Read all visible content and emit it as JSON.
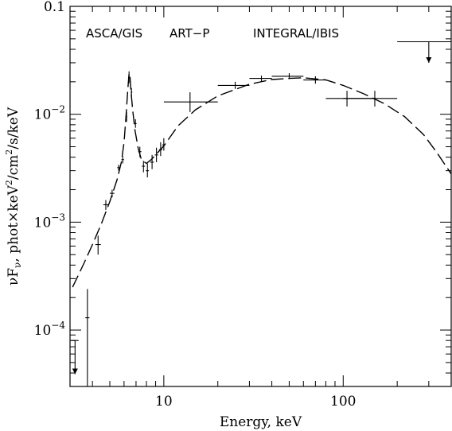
{
  "chart_data": {
    "type": "scatter",
    "xlabel": "Energy, keV",
    "ylabel_parts": [
      "νF",
      "ν",
      ", phot×keV",
      "2",
      "/cm",
      "2",
      "/s/keV"
    ],
    "xscale": "log",
    "yscale": "log",
    "xlim": [
      3.0,
      400.0
    ],
    "ylim": [
      3e-05,
      0.1
    ],
    "x_ticks": [
      {
        "value": 10,
        "label": "10"
      },
      {
        "value": 100,
        "label": "100"
      }
    ],
    "y_ticks": [
      {
        "value": 0.1,
        "label": "0.1",
        "exp": ""
      },
      {
        "value": 0.01,
        "label": "10",
        "exp": "−2"
      },
      {
        "value": 0.001,
        "label": "10",
        "exp": "−3"
      },
      {
        "value": 0.0001,
        "label": "10",
        "exp": "−4"
      }
    ],
    "annotations": [
      "ASCA/GIS",
      "ART−P",
      "INTEGRAL/IBIS"
    ],
    "series": [
      {
        "style": "crosses",
        "points": [
          {
            "x": 3.75,
            "y": 0.00013,
            "xerr": [
              3.65,
              3.85
            ],
            "yerr": [
              3e-05,
              0.00024
            ]
          },
          {
            "x": 4.3,
            "y": 0.00062,
            "xerr": [
              4.15,
              4.45
            ],
            "yerr": [
              0.0005,
              0.00075
            ]
          },
          {
            "x": 4.75,
            "y": 0.00145,
            "xerr": [
              4.6,
              4.9
            ],
            "yerr": [
              0.0013,
              0.0016
            ]
          },
          {
            "x": 5.15,
            "y": 0.00185,
            "xerr": [
              5.0,
              5.3
            ],
            "yerr": [
              0.0017,
              0.002
            ]
          },
          {
            "x": 5.6,
            "y": 0.0032,
            "xerr": [
              5.5,
              5.7
            ],
            "yerr": [
              0.003,
              0.0034
            ]
          },
          {
            "x": 5.9,
            "y": 0.0038,
            "xerr": [
              5.8,
              6.0
            ],
            "yerr": [
              0.0035,
              0.0041
            ]
          },
          {
            "x": 6.2,
            "y": 0.0095,
            "xerr": [
              6.15,
              6.25
            ],
            "yerr": [
              0.0085,
              0.0105
            ]
          },
          {
            "x": 6.4,
            "y": 0.022,
            "xerr": [
              6.33,
              6.47
            ],
            "yerr": [
              0.0195,
              0.025
            ]
          },
          {
            "x": 6.6,
            "y": 0.016,
            "xerr": [
              6.53,
              6.67
            ],
            "yerr": [
              0.0145,
              0.0175
            ]
          },
          {
            "x": 6.95,
            "y": 0.0082,
            "xerr": [
              6.85,
              7.05
            ],
            "yerr": [
              0.0075,
              0.009
            ]
          },
          {
            "x": 7.35,
            "y": 0.0045,
            "xerr": [
              7.2,
              7.5
            ],
            "yerr": [
              0.004,
              0.005
            ]
          },
          {
            "x": 7.7,
            "y": 0.0033,
            "xerr": [
              7.55,
              7.85
            ],
            "yerr": [
              0.0029,
              0.0037
            ]
          },
          {
            "x": 8.1,
            "y": 0.003,
            "xerr": [
              7.95,
              8.25
            ],
            "yerr": [
              0.0026,
              0.0035
            ]
          },
          {
            "x": 8.6,
            "y": 0.0036,
            "xerr": [
              8.4,
              8.8
            ],
            "yerr": [
              0.0031,
              0.0042
            ]
          },
          {
            "x": 9.1,
            "y": 0.0042,
            "xerr": [
              8.9,
              9.3
            ],
            "yerr": [
              0.0036,
              0.0049
            ]
          },
          {
            "x": 9.6,
            "y": 0.0047,
            "xerr": [
              9.4,
              9.8
            ],
            "yerr": [
              0.0041,
              0.0055
            ]
          },
          {
            "x": 10.0,
            "y": 0.0052,
            "xerr": [
              9.8,
              10.2
            ],
            "yerr": [
              0.0046,
              0.006
            ]
          },
          {
            "x": 14.0,
            "y": 0.013,
            "xerr": [
              10.0,
              20.0
            ],
            "yerr": [
              0.0105,
              0.016
            ]
          },
          {
            "x": 25.0,
            "y": 0.0185,
            "xerr": [
              20.0,
              30.0
            ],
            "yerr": [
              0.0172,
              0.02
            ]
          },
          {
            "x": 35.0,
            "y": 0.0215,
            "xerr": [
              30.0,
              40.0
            ],
            "yerr": [
              0.0202,
              0.0228
            ]
          },
          {
            "x": 50.0,
            "y": 0.0225,
            "xerr": [
              40.0,
              60.0
            ],
            "yerr": [
              0.0212,
              0.024
            ]
          },
          {
            "x": 70.0,
            "y": 0.0208,
            "xerr": [
              60.0,
              80.0
            ],
            "yerr": [
              0.0192,
              0.0225
            ]
          },
          {
            "x": 105.0,
            "y": 0.014,
            "xerr": [
              80.0,
              150.0
            ],
            "yerr": [
              0.0118,
              0.0165
            ]
          },
          {
            "x": 150.0,
            "y": 0.014,
            "xerr": [
              100.0,
              200.0
            ],
            "yerr": [
              0.0118,
              0.0165
            ]
          }
        ]
      },
      {
        "style": "upper-limits",
        "points": [
          {
            "x": 3.2,
            "y": 8e-05,
            "xerr": [
              3.05,
              3.35
            ],
            "to": 3.9e-05
          },
          {
            "x": 300.0,
            "y": 0.047,
            "xerr": [
              200.0,
              400.0
            ],
            "to": 0.03
          }
        ]
      },
      {
        "style": "dashed-model",
        "points": [
          [
            3.1,
            0.00025
          ],
          [
            3.3,
            0.00031
          ],
          [
            3.6,
            0.00042
          ],
          [
            4.0,
            0.00062
          ],
          [
            4.5,
            0.00098
          ],
          [
            5.0,
            0.00155
          ],
          [
            5.5,
            0.0025
          ],
          [
            5.8,
            0.0036
          ],
          [
            6.0,
            0.0055
          ],
          [
            6.15,
            0.0095
          ],
          [
            6.3,
            0.017
          ],
          [
            6.4,
            0.024
          ],
          [
            6.48,
            0.022
          ],
          [
            6.55,
            0.017
          ],
          [
            6.7,
            0.011
          ],
          [
            6.9,
            0.0072
          ],
          [
            7.2,
            0.0048
          ],
          [
            7.5,
            0.0038
          ],
          [
            8.0,
            0.0035
          ],
          [
            8.5,
            0.0038
          ],
          [
            9.0,
            0.0042
          ],
          [
            10.0,
            0.0051
          ],
          [
            12.0,
            0.0078
          ],
          [
            15.0,
            0.011
          ],
          [
            20.0,
            0.0148
          ],
          [
            30.0,
            0.019
          ],
          [
            40.0,
            0.021
          ],
          [
            50.0,
            0.0215
          ],
          [
            60.0,
            0.0218
          ],
          [
            80.0,
            0.0208
          ],
          [
            100.0,
            0.0185
          ],
          [
            130.0,
            0.0155
          ],
          [
            170.0,
            0.0125
          ],
          [
            220.0,
            0.0095
          ],
          [
            280.0,
            0.0065
          ],
          [
            330.0,
            0.0045
          ],
          [
            400.0,
            0.0028
          ]
        ]
      }
    ]
  }
}
